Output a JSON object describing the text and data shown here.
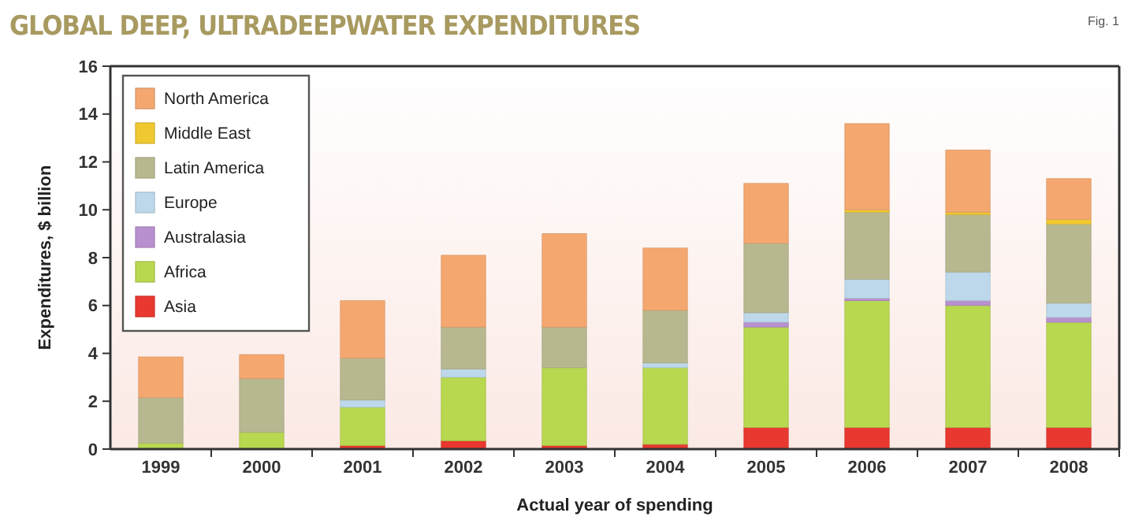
{
  "chart_data": {
    "type": "bar",
    "title": "GLOBAL DEEP, ULTRADEEPWATER EXPENDITURES",
    "annotations": [
      "Fig. 1"
    ],
    "xlabel": "Actual year of spending",
    "ylabel": "Expenditures, $ billion",
    "categories": [
      "1999",
      "2000",
      "2001",
      "2002",
      "2003",
      "2004",
      "2005",
      "2006",
      "2007",
      "2008"
    ],
    "stacked": true,
    "ylim": [
      0,
      16
    ],
    "yticks": [
      0,
      2,
      4,
      6,
      8,
      10,
      12,
      14,
      16
    ],
    "grid": false,
    "legend": "top left",
    "series": [
      {
        "name": "Asia",
        "color": "#e83830",
        "values": [
          null,
          null,
          0.15,
          0.35,
          0.15,
          0.2,
          0.9,
          0.9,
          0.9,
          0.9
        ]
      },
      {
        "name": "Africa",
        "color": "#b8d850",
        "values": [
          0.25,
          0.7,
          1.6,
          2.65,
          3.25,
          3.2,
          4.2,
          5.3,
          5.1,
          4.4
        ]
      },
      {
        "name": "Australasia",
        "color": "#b890d0",
        "values": [
          0,
          0,
          0,
          0,
          0,
          0,
          0.2,
          0.1,
          0.2,
          0.2
        ]
      },
      {
        "name": "Europe",
        "color": "#bcd8ea",
        "values": [
          0,
          0,
          0.3,
          0.35,
          0,
          0.2,
          0.4,
          0.8,
          1.2,
          0.6
        ]
      },
      {
        "name": "Latin America",
        "color": "#b8b890",
        "values": [
          1.9,
          2.25,
          1.75,
          1.75,
          1.7,
          2.2,
          2.9,
          2.8,
          2.4,
          3.3
        ]
      },
      {
        "name": "Middle East",
        "color": "#f0c830",
        "values": [
          0,
          0,
          0,
          0,
          0,
          0,
          0,
          0.1,
          0.1,
          0.2
        ]
      },
      {
        "name": "North America",
        "color": "#f4a870",
        "values": [
          1.7,
          1.0,
          2.4,
          3.0,
          3.9,
          2.6,
          2.5,
          3.6,
          2.6,
          1.7
        ]
      }
    ]
  }
}
